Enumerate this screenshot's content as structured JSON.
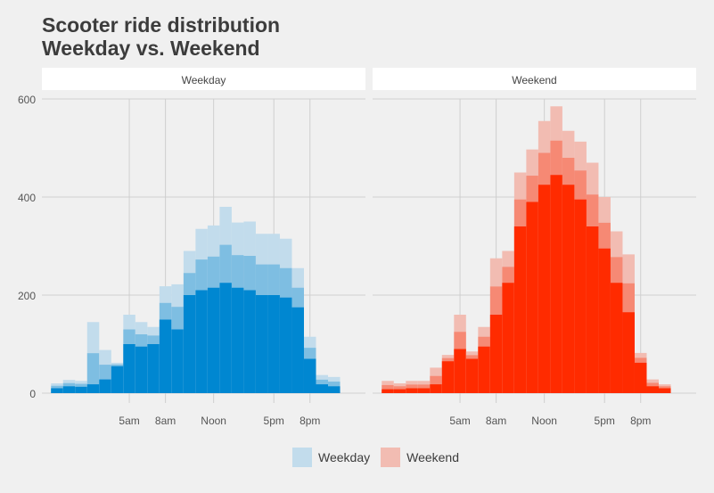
{
  "title_lines": [
    "Scooter ride distribution",
    "Weekday vs. Weekend"
  ],
  "chart_data": {
    "type": "bar",
    "title": "Scooter ride distribution Weekday vs. Weekend",
    "xlabel": "",
    "ylabel": "",
    "ylim": [
      0,
      620
    ],
    "yticks": [
      0,
      200,
      400,
      600
    ],
    "x_tick_labels": [
      {
        "hour": 5,
        "label": "5am"
      },
      {
        "hour": 8,
        "label": "8am"
      },
      {
        "hour": 12,
        "label": "Noon"
      },
      {
        "hour": 17,
        "label": "5pm"
      },
      {
        "hour": 20,
        "label": "8pm"
      }
    ],
    "grid": true,
    "legend_position": "bottom",
    "hours": [
      -1,
      0,
      1,
      2,
      3,
      4,
      5,
      6,
      7,
      8,
      9,
      10,
      11,
      12,
      13,
      14,
      15,
      16,
      17,
      18,
      19,
      20,
      21,
      22,
      23
    ],
    "panels": [
      {
        "name": "Weekday",
        "color": "#0087d1",
        "light_color": "#c2dcec",
        "max_values": [
          20,
          27,
          25,
          145,
          88,
          62,
          160,
          145,
          135,
          218,
          222,
          290,
          335,
          342,
          380,
          348,
          350,
          325,
          325,
          315,
          255,
          115,
          37,
          33,
          0
        ],
        "core_values": [
          10,
          14,
          13,
          18,
          28,
          55,
          100,
          95,
          100,
          150,
          130,
          200,
          210,
          215,
          225,
          215,
          210,
          200,
          200,
          195,
          175,
          70,
          18,
          14,
          0
        ]
      },
      {
        "name": "Weekend",
        "color": "#ff2b00",
        "light_color": "#f2bcb2",
        "max_values": [
          25,
          20,
          25,
          25,
          52,
          78,
          160,
          85,
          135,
          275,
          290,
          450,
          497,
          555,
          585,
          535,
          513,
          470,
          400,
          330,
          283,
          82,
          28,
          18,
          0
        ],
        "core_values": [
          8,
          8,
          10,
          10,
          18,
          65,
          90,
          70,
          95,
          160,
          225,
          340,
          390,
          425,
          445,
          425,
          395,
          340,
          295,
          225,
          165,
          62,
          14,
          10,
          0
        ]
      }
    ],
    "legend": [
      {
        "label": "Weekday",
        "color": "#c2dcec"
      },
      {
        "label": "Weekend",
        "color": "#f2bcb2"
      }
    ]
  }
}
